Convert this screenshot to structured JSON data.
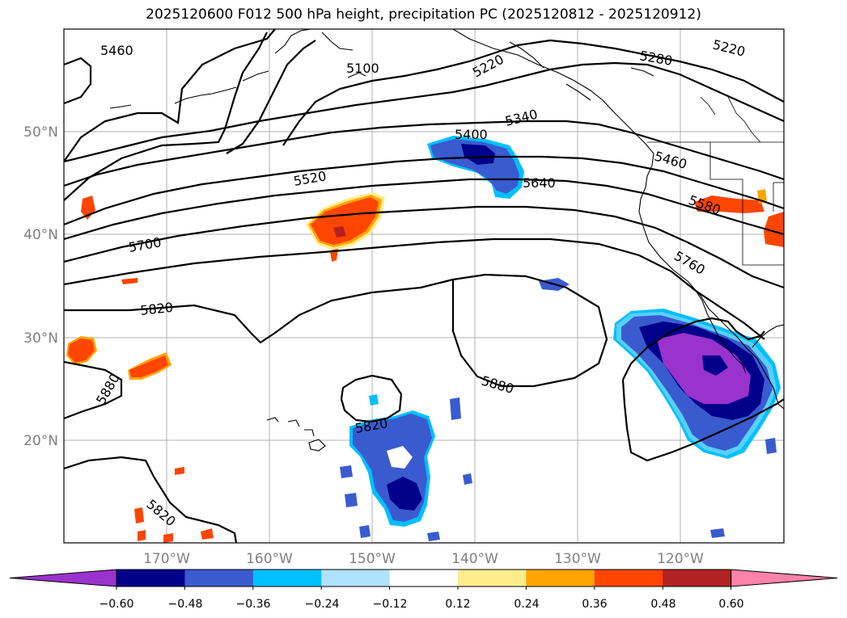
{
  "title": "2025120600 F012 500 hPa height, precipitation PC (2025120812 - 2025120912)",
  "map": {
    "lat_labels": [
      "50°N",
      "40°N",
      "30°N",
      "20°N"
    ],
    "lon_labels": [
      "170°W",
      "160°W",
      "150°W",
      "140°W",
      "130°W",
      "120°W"
    ],
    "contour_labels": [
      "5460",
      "5100",
      "5220",
      "5280",
      "5220",
      "5340",
      "5400",
      "5460",
      "5520",
      "5640",
      "5580",
      "5700",
      "5760",
      "5820",
      "5880",
      "5880",
      "5820",
      "5820"
    ]
  },
  "colorbar": {
    "ticks": [
      "−0.60",
      "−0.48",
      "−0.36",
      "−0.24",
      "−0.12",
      "0.12",
      "0.24",
      "0.36",
      "0.48",
      "0.60"
    ],
    "colors": [
      "#9a32cd",
      "#00008b",
      "#3a5bd0",
      "#00bfff",
      "#b0e2ff",
      "#ffffff",
      "#ffec8b",
      "#ffa500",
      "#ff4500",
      "#b22222",
      "#ff82ab"
    ]
  }
}
